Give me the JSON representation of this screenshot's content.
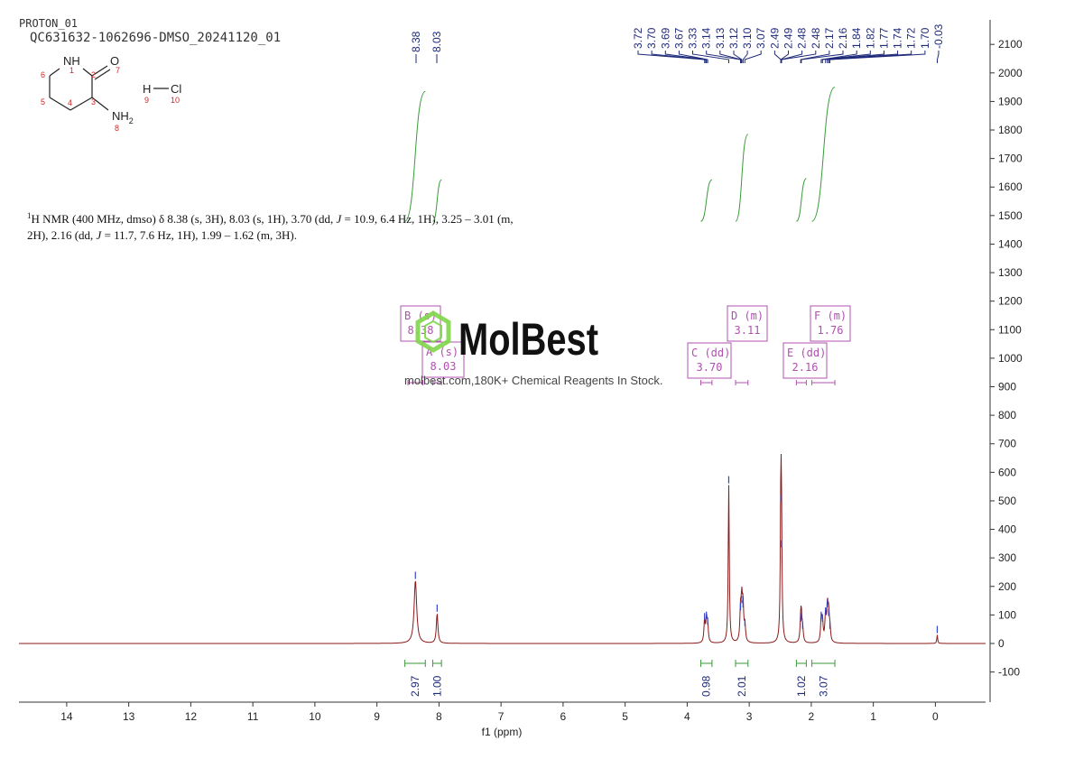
{
  "header": {
    "experiment": "PROTON_01",
    "sample": "QC631632-1062696-DMSO_20241120_01"
  },
  "structure": {
    "atoms": {
      "nh": "NH",
      "o": "O",
      "nh2": "NH",
      "nh2_sub": "2",
      "h": "H",
      "cl": "Cl"
    },
    "numbers": [
      "1",
      "2",
      "3",
      "4",
      "5",
      "6",
      "7",
      "8",
      "9",
      "10"
    ]
  },
  "nmr_description": {
    "line1": {
      "sup": "1",
      "a": "H NMR (400 MHz, dmso) δ 8.38 (s, 3H), 8.03 (s, 1H), 3.70 (dd, ",
      "j": "J",
      "b": " = 10.9, 6.4 Hz, 1H), 3.25 – 3.01 (m,"
    },
    "line2": {
      "a": "2H), 2.16 (dd, ",
      "j": "J",
      "b": " = 11.7, 7.6 Hz, 1H), 1.99 – 1.62 (m, 3H)."
    }
  },
  "watermark": {
    "brand": "MolBest",
    "tagline": "molbest.com,180K+ Chemical Reagents In Stock."
  },
  "colors": {
    "spectrum": "#8b1a1a",
    "integral": "#3a9a3a",
    "peak_labels": "#1f2a7a",
    "multiplet": "#b050b0",
    "watermark_logo": "#7fd64a"
  },
  "chart_data": {
    "type": "line",
    "xlabel": "f1 (ppm)",
    "x_range": [
      14.8,
      -0.8
    ],
    "x_reversed": true,
    "y_range": [
      -200,
      2200
    ],
    "x_ticks": [
      14,
      13,
      12,
      11,
      10,
      9,
      8,
      7,
      6,
      5,
      4,
      3,
      2,
      1,
      0
    ],
    "y_ticks": [
      -100,
      0,
      100,
      200,
      300,
      400,
      500,
      600,
      700,
      800,
      900,
      1000,
      1100,
      1200,
      1300,
      1400,
      1500,
      1600,
      1700,
      1800,
      1900,
      2000,
      2100
    ],
    "peaks": [
      {
        "ppm": 8.38,
        "height": 220,
        "width": 0.025
      },
      {
        "ppm": 8.03,
        "height": 105,
        "width": 0.015
      },
      {
        "ppm": 3.72,
        "height": 75,
        "width": 0.012
      },
      {
        "ppm": 3.69,
        "height": 80,
        "width": 0.012
      },
      {
        "ppm": 3.67,
        "height": 60,
        "width": 0.012
      },
      {
        "ppm": 3.33,
        "height": 555,
        "width": 0.01
      },
      {
        "ppm": 3.14,
        "height": 110,
        "width": 0.012
      },
      {
        "ppm": 3.12,
        "height": 135,
        "width": 0.012
      },
      {
        "ppm": 3.1,
        "height": 120,
        "width": 0.012
      },
      {
        "ppm": 3.07,
        "height": 55,
        "width": 0.012
      },
      {
        "ppm": 2.49,
        "height": 490,
        "width": 0.01
      },
      {
        "ppm": 2.48,
        "height": 330,
        "width": 0.01
      },
      {
        "ppm": 2.17,
        "height": 70,
        "width": 0.012
      },
      {
        "ppm": 2.16,
        "height": 75,
        "width": 0.012
      },
      {
        "ppm": 2.14,
        "height": 45,
        "width": 0.012
      },
      {
        "ppm": 1.84,
        "height": 80,
        "width": 0.012
      },
      {
        "ppm": 1.82,
        "height": 70,
        "width": 0.012
      },
      {
        "ppm": 1.77,
        "height": 95,
        "width": 0.012
      },
      {
        "ppm": 1.74,
        "height": 120,
        "width": 0.012
      },
      {
        "ppm": 1.72,
        "height": 90,
        "width": 0.012
      },
      {
        "ppm": 1.7,
        "height": 45,
        "width": 0.012
      },
      {
        "ppm": -0.03,
        "height": 30,
        "width": 0.008
      }
    ],
    "peak_labels": {
      "left": [
        "8.38",
        "8.03"
      ],
      "right": [
        "3.72",
        "3.70",
        "3.69",
        "3.67",
        "3.33",
        "3.14",
        "3.13",
        "3.12",
        "3.10",
        "3.07",
        "2.49",
        "2.49",
        "2.48",
        "2.48",
        "2.17",
        "2.16",
        "1.84",
        "1.82",
        "1.77",
        "1.74",
        "1.72",
        "1.70",
        "-0.03"
      ]
    },
    "integrals": [
      {
        "from": 8.55,
        "to": 8.22,
        "value": "2.97",
        "y_start": 1480,
        "y_end": 1935
      },
      {
        "from": 8.1,
        "to": 7.96,
        "value": "1.00",
        "y_start": 1480,
        "y_end": 1625
      },
      {
        "from": 3.78,
        "to": 3.6,
        "value": "0.98",
        "y_start": 1480,
        "y_end": 1625
      },
      {
        "from": 3.22,
        "to": 3.02,
        "value": "2.01",
        "y_start": 1480,
        "y_end": 1785
      },
      {
        "from": 2.24,
        "to": 2.08,
        "value": "1.02",
        "y_start": 1480,
        "y_end": 1630
      },
      {
        "from": 1.99,
        "to": 1.62,
        "value": "3.07",
        "y_start": 1480,
        "y_end": 1950
      }
    ],
    "multiplets": [
      {
        "letter": "B (s)",
        "shift": "8.38",
        "range": [
          8.5,
          8.26
        ]
      },
      {
        "letter": "A (s)",
        "shift": "8.03",
        "range": [
          8.1,
          7.96
        ]
      },
      {
        "letter": "C (dd)",
        "shift": "3.70",
        "range": [
          3.78,
          3.6
        ]
      },
      {
        "letter": "D (m)",
        "shift": "3.11",
        "range": [
          3.22,
          3.02
        ]
      },
      {
        "letter": "E (dd)",
        "shift": "2.16",
        "range": [
          2.24,
          2.08
        ]
      },
      {
        "letter": "F (m)",
        "shift": "1.76",
        "range": [
          1.99,
          1.62
        ]
      }
    ]
  }
}
